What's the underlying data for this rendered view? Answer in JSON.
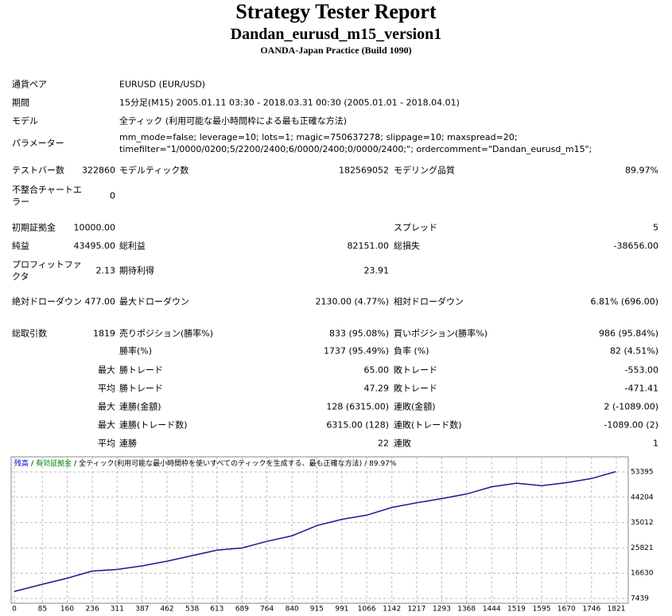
{
  "header": {
    "title": "Strategy Tester Report",
    "subtitle": "Dandan_eurusd_m15_version1",
    "server": "OANDA-Japan Practice (Build 1090)"
  },
  "info": [
    {
      "label": "通貨ペア",
      "value": [
        "EURUSD (EUR/USD)"
      ]
    },
    {
      "label": "期間",
      "value": [
        "15分足(M15) 2005.01.11 03:30 - 2018.03.31 00:30 (2005.01.01 - 2018.04.01)"
      ]
    },
    {
      "label": "モデル",
      "value": [
        "全ティック (利用可能な最小時間枠による最も正確な方法)"
      ]
    },
    {
      "label": "パラメーター",
      "value": [
        "mm_mode=false; leverage=10; lots=1; magic=750637278; slippage=10; maxspread=20;",
        "timefilter=\"1/0000/0200;5/2200/2400;6/0000/2400;0/0000/2400;\"; ordercomment=\"Dandan_eurusd_m15\";"
      ]
    }
  ],
  "stats": [
    [
      "テストバー数",
      "322860",
      "モデルティック数",
      "182569052",
      "モデリング品質",
      "89.97%"
    ],
    [
      "不整合チャートエラー",
      "0",
      null,
      null,
      null,
      null
    ],
    [
      "初期証拠金",
      "10000.00",
      null,
      null,
      "スプレッド",
      "5"
    ],
    [
      "純益",
      "43495.00",
      "総利益",
      "82151.00",
      "総損失",
      "-38656.00"
    ],
    [
      "プロフィットファクタ",
      "2.13",
      "期待利得",
      "23.91",
      null,
      null
    ],
    [
      "絶対ドローダウン",
      "477.00",
      "最大ドローダウン",
      "2130.00 (4.77%)",
      "相対ドローダウン",
      "6.81% (696.00)"
    ],
    [
      "総取引数",
      "1819",
      "売りポジション(勝率%)",
      "833 (95.08%)",
      "買いポジション(勝率%)",
      "986 (95.84%)"
    ],
    [
      null,
      null,
      "勝率(%)",
      "1737 (95.49%)",
      "負率 (%)",
      "82 (4.51%)"
    ],
    [
      null,
      "最大",
      "勝トレード",
      "65.00",
      "敗トレード",
      "-553.00"
    ],
    [
      null,
      "平均",
      "勝トレード",
      "47.29",
      "敗トレード",
      "-471.41"
    ],
    [
      null,
      "最大",
      "連勝(金額)",
      "128 (6315.00)",
      "連敗(金額)",
      "2 (-1089.00)"
    ],
    [
      null,
      "最大",
      "連勝(トレード数)",
      "6315.00 (128)",
      "連敗(トレード数)",
      "-1089.00 (2)"
    ],
    [
      null,
      "平均",
      "連勝",
      "22",
      "連敗",
      "1"
    ]
  ],
  "chart_data": {
    "type": "line",
    "legend": {
      "separator": "/",
      "equity": {
        "text": "有効証拠金",
        "color": "#008000"
      },
      "model": "全ティック(利用可能な最小時間枠を使いすべてのティックを生成する、最も正確な方法)",
      "quality": "89.97%"
    },
    "x": [
      0,
      85,
      160,
      236,
      311,
      387,
      462,
      538,
      613,
      689,
      764,
      840,
      915,
      991,
      1066,
      1142,
      1217,
      1293,
      1368,
      1444,
      1519,
      1595,
      1670,
      1746,
      1819
    ],
    "series": [
      {
        "name": "残高",
        "color": "#0000cc",
        "values": [
          10000,
          12600,
          14800,
          17400,
          18000,
          19300,
          21000,
          23000,
          25000,
          25800,
          28200,
          30200,
          33900,
          36200,
          37700,
          40500,
          42200,
          43700,
          45400,
          48000,
          49300,
          48400,
          49500,
          51000,
          53495
        ]
      }
    ],
    "line_color": "#1a1a8c",
    "xlim": [
      0,
      1821
    ],
    "xticks": [
      0,
      85,
      160,
      236,
      311,
      387,
      462,
      538,
      613,
      689,
      764,
      840,
      915,
      991,
      1066,
      1142,
      1217,
      1293,
      1368,
      1444,
      1519,
      1595,
      1670,
      1746,
      1821
    ],
    "ylim": [
      7439,
      53395
    ],
    "yticks": [
      53395,
      44204,
      35012,
      25821,
      16630,
      7439
    ],
    "grid": true
  }
}
